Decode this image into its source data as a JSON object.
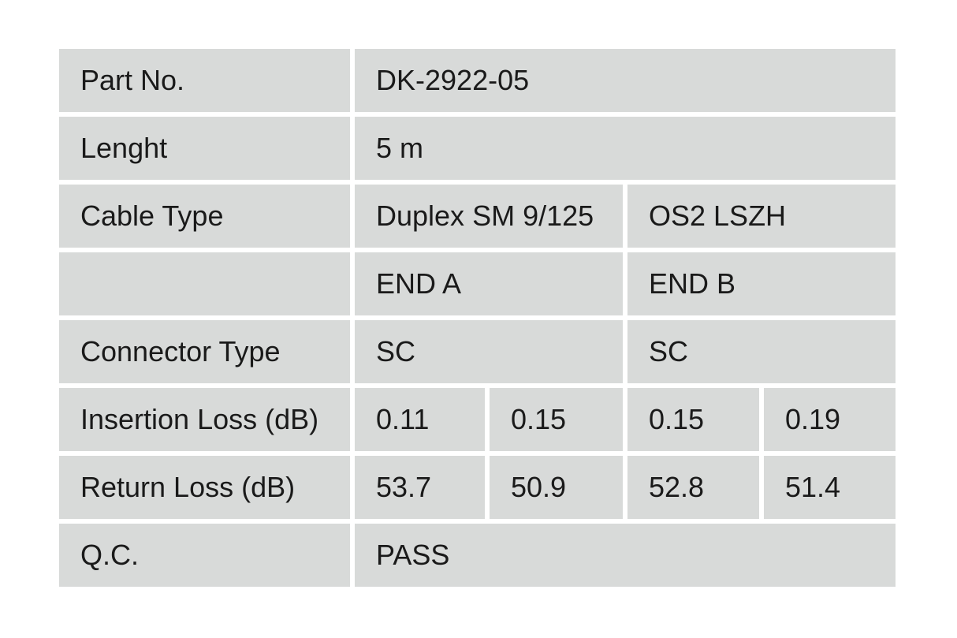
{
  "page": {
    "background_color": "#ffffff",
    "cell_background_color": "#d8dad9",
    "text_color": "#1a1a1a"
  },
  "table": {
    "rows": [
      {
        "label": "Part No.",
        "values": [
          "DK-2922-05"
        ]
      },
      {
        "label": "Lenght",
        "values": [
          "5 m"
        ]
      },
      {
        "label": "Cable Type",
        "values": [
          "Duplex SM 9/125",
          "OS2 LSZH"
        ]
      },
      {
        "label": "",
        "values": [
          "END A",
          "END B"
        ]
      },
      {
        "label": "Connector Type",
        "values": [
          "SC",
          "SC"
        ]
      },
      {
        "label": "Insertion Loss (dB)",
        "values": [
          "0.11",
          "0.15",
          "0.15",
          "0.19"
        ]
      },
      {
        "label": "Return Loss (dB)",
        "values": [
          "53.7",
          "50.9",
          "52.8",
          "51.4"
        ]
      },
      {
        "label": "Q.C.",
        "values": [
          "PASS"
        ]
      }
    ]
  }
}
